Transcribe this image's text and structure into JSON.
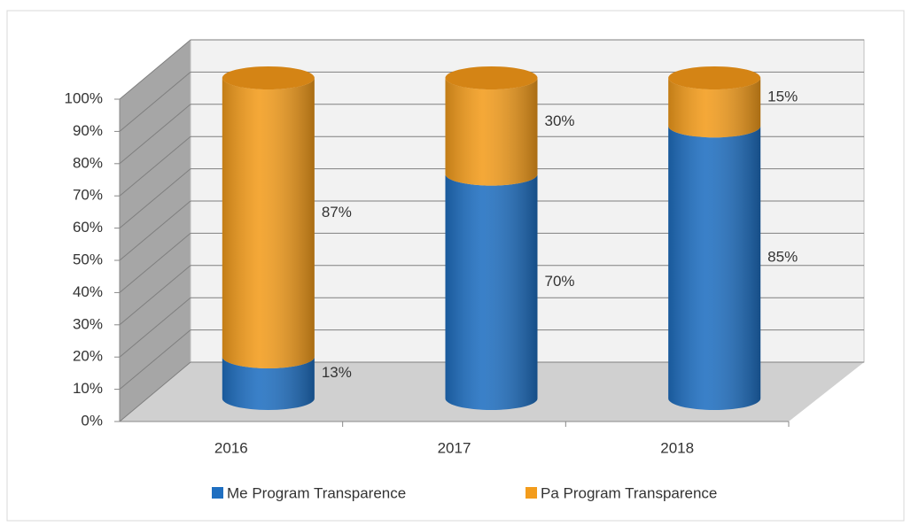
{
  "chart_data": {
    "type": "cylinder_stacked_percent",
    "categories": [
      "2016",
      "2017",
      "2018"
    ],
    "series": [
      {
        "name": "Me Program Transparence",
        "color": "#1f6fc1",
        "values": [
          13,
          70,
          85
        ],
        "value_labels": [
          "13%",
          "70%",
          "85%"
        ]
      },
      {
        "name": "Pa Program Transparence",
        "color": "#f39c1c",
        "values": [
          87,
          30,
          15
        ],
        "value_labels": [
          "87%",
          "30%",
          "15%"
        ]
      }
    ],
    "ylim": [
      0,
      100
    ],
    "yticks": [
      {
        "value": 0,
        "label": "0%"
      },
      {
        "value": 10,
        "label": "10%"
      },
      {
        "value": 20,
        "label": "20%"
      },
      {
        "value": 30,
        "label": "30%"
      },
      {
        "value": 40,
        "label": "40%"
      },
      {
        "value": 50,
        "label": "50%"
      },
      {
        "value": 60,
        "label": "60%"
      },
      {
        "value": 70,
        "label": "70%"
      },
      {
        "value": 80,
        "label": "80%"
      },
      {
        "value": 90,
        "label": "90%"
      },
      {
        "value": 100,
        "label": "100%"
      }
    ],
    "grid": true,
    "legend": "bottom"
  }
}
